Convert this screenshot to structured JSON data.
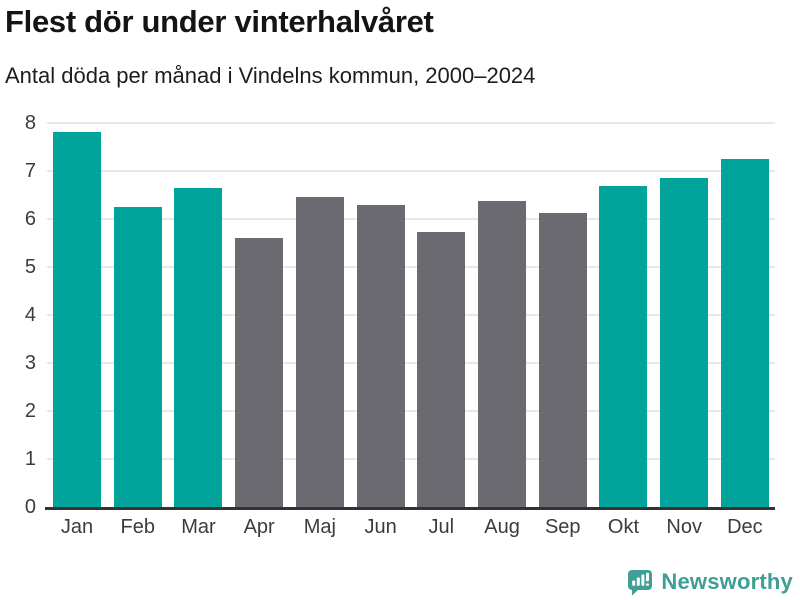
{
  "header": {
    "title": "Flest dör under vinterhalvåret",
    "subtitle": "Antal döda per månad i Vindelns kommun, 2000–2024"
  },
  "chart_data": {
    "type": "bar",
    "title": "Flest dör under vinterhalvåret",
    "subtitle": "Antal döda per månad i Vindelns kommun, 2000–2024",
    "categories": [
      "Jan",
      "Feb",
      "Mar",
      "Apr",
      "Maj",
      "Jun",
      "Jul",
      "Aug",
      "Sep",
      "Okt",
      "Nov",
      "Dec"
    ],
    "values": [
      7.82,
      6.26,
      6.64,
      5.61,
      6.45,
      6.3,
      5.73,
      6.38,
      6.12,
      6.68,
      6.85,
      7.26
    ],
    "bar_palette": [
      "teal",
      "teal",
      "teal",
      "gray",
      "gray",
      "gray",
      "gray",
      "gray",
      "gray",
      "teal",
      "teal",
      "teal"
    ],
    "xlabel": "",
    "ylabel": "",
    "ylim": [
      0,
      8
    ],
    "yticks": [
      0,
      1,
      2,
      3,
      4,
      5,
      6,
      7,
      8
    ],
    "grid": true,
    "legend": false
  },
  "colors": {
    "teal": "#00a49b",
    "gray": "#6c6a71",
    "gridline": "#e8e7ea",
    "axis_line": "#333333",
    "tick_label": "#3c3c3c",
    "title_text": "#141414",
    "logo": "#3f9e96"
  },
  "footer": {
    "brand": "Newsworthy"
  }
}
